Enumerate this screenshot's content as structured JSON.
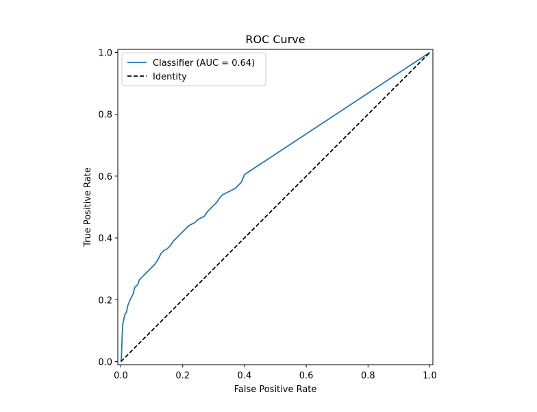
{
  "chart_data": {
    "type": "line",
    "title": "ROC Curve",
    "xlabel": "False Positive Rate",
    "ylabel": "True Positive Rate",
    "xlim": [
      -0.01,
      1.01
    ],
    "ylim": [
      -0.01,
      1.01
    ],
    "xticks": [
      0.0,
      0.2,
      0.4,
      0.6,
      0.8,
      1.0
    ],
    "yticks": [
      0.0,
      0.2,
      0.4,
      0.6,
      0.8,
      1.0
    ],
    "xtick_labels": [
      "0.0",
      "0.2",
      "0.4",
      "0.6",
      "0.8",
      "1.0"
    ],
    "ytick_labels": [
      "0.0",
      "0.2",
      "0.4",
      "0.6",
      "0.8",
      "1.0"
    ],
    "grid": false,
    "legend_position": "upper-left",
    "series": [
      {
        "name": "Classifier (AUC = 0.64)",
        "color": "#1f77b4",
        "style": "solid",
        "x": [
          0.0,
          0.002,
          0.003,
          0.004,
          0.005,
          0.006,
          0.008,
          0.01,
          0.012,
          0.015,
          0.018,
          0.022,
          0.026,
          0.03,
          0.035,
          0.04,
          0.045,
          0.05,
          0.055,
          0.058,
          0.06,
          0.065,
          0.07,
          0.08,
          0.09,
          0.1,
          0.11,
          0.12,
          0.13,
          0.14,
          0.15,
          0.16,
          0.17,
          0.18,
          0.19,
          0.2,
          0.21,
          0.22,
          0.23,
          0.24,
          0.25,
          0.26,
          0.27,
          0.28,
          0.29,
          0.3,
          0.31,
          0.32,
          0.33,
          0.34,
          0.35,
          0.36,
          0.37,
          0.38,
          0.39,
          0.4,
          1.0
        ],
        "y": [
          0.0,
          0.02,
          0.05,
          0.08,
          0.1,
          0.12,
          0.13,
          0.14,
          0.15,
          0.155,
          0.16,
          0.18,
          0.19,
          0.2,
          0.21,
          0.22,
          0.24,
          0.245,
          0.25,
          0.26,
          0.265,
          0.27,
          0.275,
          0.285,
          0.295,
          0.305,
          0.315,
          0.33,
          0.35,
          0.36,
          0.365,
          0.375,
          0.39,
          0.4,
          0.41,
          0.42,
          0.43,
          0.44,
          0.445,
          0.45,
          0.46,
          0.465,
          0.47,
          0.485,
          0.495,
          0.505,
          0.515,
          0.53,
          0.54,
          0.545,
          0.55,
          0.555,
          0.56,
          0.57,
          0.58,
          0.605,
          1.0
        ]
      },
      {
        "name": "Identity",
        "color": "#000000",
        "style": "dashed",
        "x": [
          0.0,
          1.0
        ],
        "y": [
          0.0,
          1.0
        ]
      }
    ]
  }
}
